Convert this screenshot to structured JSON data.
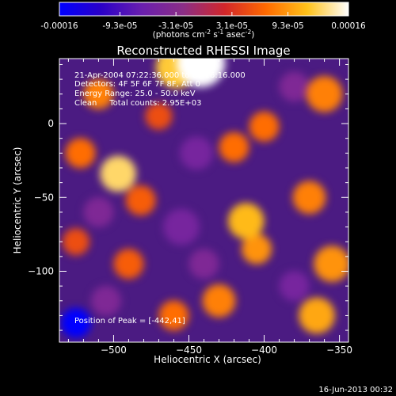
{
  "colorbar": {
    "tick_labels": [
      "-0.00016",
      "-9.3e-05",
      "-3.1e-05",
      "3.1e-05",
      "9.3e-05",
      "0.00016"
    ],
    "tick_values": [
      -0.00016,
      -9.3e-05,
      -3.1e-05,
      3.1e-05,
      9.3e-05,
      0.00016
    ],
    "range": [
      -0.00016,
      0.00016
    ],
    "units_main": "(photons cm",
    "units_exp1": "-2",
    "units_mid": " s",
    "units_exp2": "-1",
    "units_tail": " asec",
    "units_exp3": "-2",
    "units_close": ")",
    "stops": [
      "#0000ff",
      "#2a00c8",
      "#6a1fae",
      "#8b2e86",
      "#d2262a",
      "#ff6a00",
      "#ffc21a",
      "#ffffff"
    ]
  },
  "title": "Reconstructed RHESSI Image",
  "annotations": {
    "time_range": "21-Apr-2004 07:22:36.000 to 07:26:16.000",
    "detectors": "Detectors: 4F 5F 6F 7F 8F, Att 0",
    "energy": "Energy Range: 25.0 - 50.0 keV",
    "method": "Clean     Total counts: 2.95E+03",
    "peak": "Position of Peak = [-442,41]"
  },
  "footer": {
    "timestamp": "16-Jun-2013 00:32"
  },
  "chart_data": {
    "type": "heatmap",
    "title": "Reconstructed RHESSI Image",
    "xlabel": "Heliocentric X (arcsec)",
    "ylabel": "Heliocentric Y (arcsec)",
    "xlim": [
      -536,
      -344
    ],
    "ylim": [
      -148,
      44
    ],
    "x_ticks": [
      -500,
      -450,
      -400,
      -350
    ],
    "y_ticks": [
      0,
      -50,
      -100
    ],
    "x_tick_labels": [
      "−500",
      "−450",
      "−400",
      "−350"
    ],
    "y_tick_labels": [
      "0",
      "−50",
      "−100"
    ],
    "peak_position": [
      -442,
      41
    ],
    "sources": [
      {
        "x": -442,
        "y": 41,
        "r": 16,
        "value": 0.00016
      },
      {
        "x": -458,
        "y": 38,
        "r": 14,
        "value": 0.00012
      },
      {
        "x": -510,
        "y": 20,
        "r": 10,
        "value": 8e-05
      },
      {
        "x": -497,
        "y": -34,
        "r": 12,
        "value": 0.00013
      },
      {
        "x": -522,
        "y": -20,
        "r": 10,
        "value": 7e-05
      },
      {
        "x": -482,
        "y": -52,
        "r": 10,
        "value": 6e-05
      },
      {
        "x": -412,
        "y": -66,
        "r": 12,
        "value": 0.00011
      },
      {
        "x": -405,
        "y": -85,
        "r": 10,
        "value": 9e-05
      },
      {
        "x": -420,
        "y": -16,
        "r": 10,
        "value": 7e-05
      },
      {
        "x": -400,
        "y": -2,
        "r": 10,
        "value": 7e-05
      },
      {
        "x": -360,
        "y": 20,
        "r": 12,
        "value": 8e-05
      },
      {
        "x": -370,
        "y": -50,
        "r": 11,
        "value": 8e-05
      },
      {
        "x": -355,
        "y": -95,
        "r": 12,
        "value": 9e-05
      },
      {
        "x": -365,
        "y": -130,
        "r": 12,
        "value": 0.0001
      },
      {
        "x": -430,
        "y": -120,
        "r": 11,
        "value": 8e-05
      },
      {
        "x": -460,
        "y": -130,
        "r": 10,
        "value": 7e-05
      },
      {
        "x": -490,
        "y": -95,
        "r": 10,
        "value": 6e-05
      },
      {
        "x": -525,
        "y": -80,
        "r": 9,
        "value": 5e-05
      },
      {
        "x": -470,
        "y": 5,
        "r": 9,
        "value": 5e-05
      },
      {
        "x": -525,
        "y": -135,
        "r": 10,
        "value": -0.00016
      },
      {
        "x": -455,
        "y": -70,
        "r": 12,
        "value": -5e-05
      },
      {
        "x": -445,
        "y": -20,
        "r": 11,
        "value": -5e-05
      },
      {
        "x": -380,
        "y": -110,
        "r": 10,
        "value": -5e-05
      },
      {
        "x": -505,
        "y": -120,
        "r": 10,
        "value": -4e-05
      },
      {
        "x": -440,
        "y": -95,
        "r": 10,
        "value": -4e-05
      },
      {
        "x": -510,
        "y": -60,
        "r": 10,
        "value": -4e-05
      },
      {
        "x": -380,
        "y": 25,
        "r": 10,
        "value": -4e-05
      }
    ]
  }
}
